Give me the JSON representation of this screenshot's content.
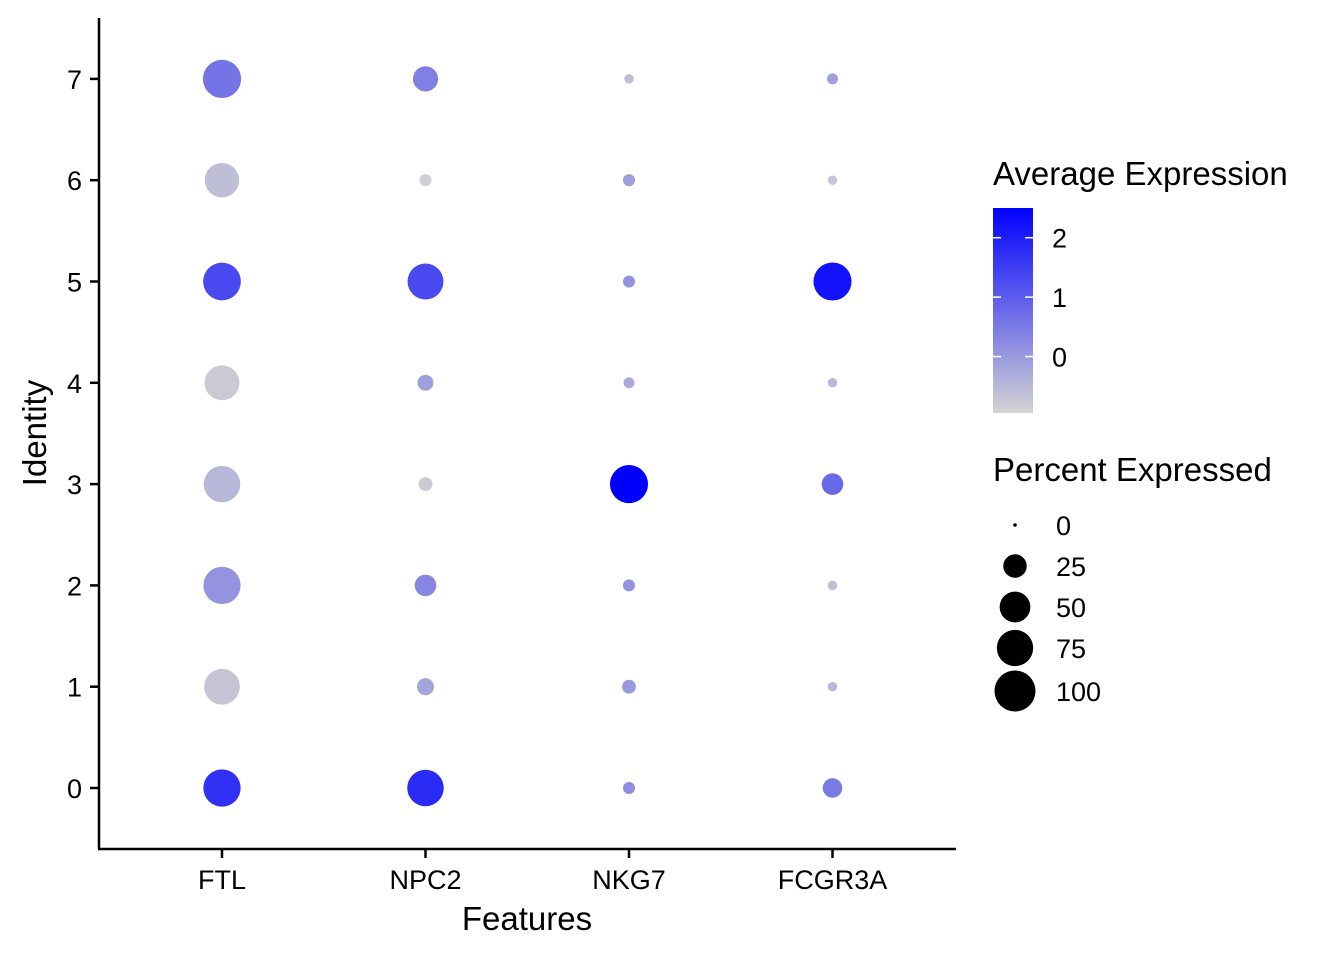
{
  "chart_data": {
    "type": "scatter",
    "subtype": "dot-plot",
    "xlabel": "Features",
    "ylabel": "Identity",
    "features": [
      "FTL",
      "NPC2",
      "NKG7",
      "FCGR3A"
    ],
    "identities": [
      "0",
      "1",
      "2",
      "3",
      "4",
      "5",
      "6",
      "7"
    ],
    "points": [
      {
        "feature": "FTL",
        "identity": "0",
        "pct": 80,
        "avg": 1.7
      },
      {
        "feature": "FTL",
        "identity": "1",
        "pct": 72,
        "avg": -0.7
      },
      {
        "feature": "FTL",
        "identity": "2",
        "pct": 80,
        "avg": 0.1
      },
      {
        "feature": "FTL",
        "identity": "3",
        "pct": 76,
        "avg": -0.5
      },
      {
        "feature": "FTL",
        "identity": "4",
        "pct": 68,
        "avg": -0.8
      },
      {
        "feature": "FTL",
        "identity": "5",
        "pct": 82,
        "avg": 1.3
      },
      {
        "feature": "FTL",
        "identity": "6",
        "pct": 66,
        "avg": -0.6
      },
      {
        "feature": "FTL",
        "identity": "7",
        "pct": 85,
        "avg": 0.6
      },
      {
        "feature": "NPC2",
        "identity": "0",
        "pct": 76,
        "avg": 1.8
      },
      {
        "feature": "NPC2",
        "identity": "1",
        "pct": 10,
        "avg": -0.2
      },
      {
        "feature": "NPC2",
        "identity": "2",
        "pct": 20,
        "avg": 0.3
      },
      {
        "feature": "NPC2",
        "identity": "3",
        "pct": 5,
        "avg": -0.8
      },
      {
        "feature": "NPC2",
        "identity": "4",
        "pct": 8,
        "avg": -0.1
      },
      {
        "feature": "NPC2",
        "identity": "5",
        "pct": 73,
        "avg": 1.3
      },
      {
        "feature": "NPC2",
        "identity": "6",
        "pct": 3,
        "avg": -0.9
      },
      {
        "feature": "NPC2",
        "identity": "7",
        "pct": 30,
        "avg": 0.4
      },
      {
        "feature": "NKG7",
        "identity": "0",
        "pct": 3,
        "avg": 0.2
      },
      {
        "feature": "NKG7",
        "identity": "1",
        "pct": 5,
        "avg": 0.0
      },
      {
        "feature": "NKG7",
        "identity": "2",
        "pct": 3,
        "avg": 0.1
      },
      {
        "feature": "NKG7",
        "identity": "3",
        "pct": 84,
        "avg": 2.5
      },
      {
        "feature": "NKG7",
        "identity": "4",
        "pct": 2,
        "avg": -0.3
      },
      {
        "feature": "NKG7",
        "identity": "5",
        "pct": 3,
        "avg": 0.1
      },
      {
        "feature": "NKG7",
        "identity": "6",
        "pct": 3,
        "avg": -0.1
      },
      {
        "feature": "NKG7",
        "identity": "7",
        "pct": 1,
        "avg": -0.6
      },
      {
        "feature": "FCGR3A",
        "identity": "0",
        "pct": 15,
        "avg": 0.5
      },
      {
        "feature": "FCGR3A",
        "identity": "1",
        "pct": 1,
        "avg": -0.5
      },
      {
        "feature": "FCGR3A",
        "identity": "2",
        "pct": 1,
        "avg": -0.6
      },
      {
        "feature": "FCGR3A",
        "identity": "3",
        "pct": 20,
        "avg": 0.8
      },
      {
        "feature": "FCGR3A",
        "identity": "4",
        "pct": 1,
        "avg": -0.5
      },
      {
        "feature": "FCGR3A",
        "identity": "5",
        "pct": 84,
        "avg": 2.2
      },
      {
        "feature": "FCGR3A",
        "identity": "6",
        "pct": 1,
        "avg": -0.7
      },
      {
        "feature": "FCGR3A",
        "identity": "7",
        "pct": 2,
        "avg": -0.1
      }
    ],
    "color_scale": {
      "title": "Average Expression",
      "low_color": "#d3d3d3",
      "high_color": "#0000ff",
      "min": -0.95,
      "max": 2.5,
      "breaks": [
        0,
        1,
        2
      ],
      "break_labels": [
        "0",
        "1",
        "2"
      ]
    },
    "size_scale": {
      "title": "Percent Expressed",
      "breaks": [
        0,
        25,
        50,
        75,
        100
      ],
      "break_labels": [
        "0",
        "25",
        "50",
        "75",
        "100"
      ]
    },
    "legend_position": "right",
    "grid": false
  }
}
